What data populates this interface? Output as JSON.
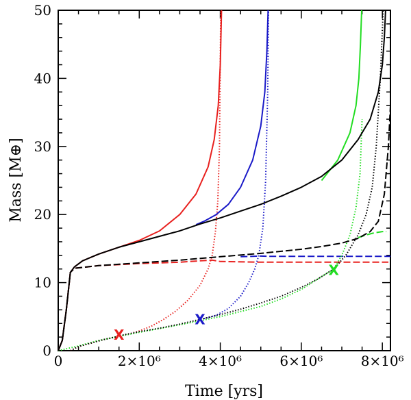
{
  "chart_data": {
    "type": "line",
    "title": "",
    "xlabel": "Time [yrs]",
    "ylabel": "Mass [M⊕]",
    "xlim": [
      0,
      8200000
    ],
    "ylim": [
      0,
      50
    ],
    "x_ticks": [
      {
        "value": 0,
        "label": "0"
      },
      {
        "value": 2000000,
        "label": "2×10⁶"
      },
      {
        "value": 4000000,
        "label": "4×10⁶"
      },
      {
        "value": 6000000,
        "label": "6×10⁶"
      },
      {
        "value": 8000000,
        "label": "8×10⁶"
      }
    ],
    "y_ticks": [
      {
        "value": 0,
        "label": "0"
      },
      {
        "value": 10,
        "label": "10"
      },
      {
        "value": 20,
        "label": "20"
      },
      {
        "value": 30,
        "label": "30"
      },
      {
        "value": 40,
        "label": "40"
      },
      {
        "value": 50,
        "label": "50"
      }
    ],
    "series": [
      {
        "name": "red-total",
        "color": "#e8201e",
        "dash": "solid",
        "x": [
          0,
          100000,
          200000,
          300000,
          400000,
          600000,
          1000000,
          1500000,
          2000000,
          2500000,
          3000000,
          3400000,
          3700000,
          3850000,
          3950000,
          4000000,
          4030000
        ],
        "y": [
          0,
          1.5,
          6,
          11.5,
          12.3,
          13.2,
          14.2,
          15.2,
          16.2,
          17.6,
          20.0,
          23.0,
          27.0,
          31.0,
          36.0,
          42.0,
          50.0
        ]
      },
      {
        "name": "red-core",
        "color": "#e8201e",
        "dash": "dotted",
        "x": [
          300000,
          500000,
          800000,
          1100000,
          1400000,
          1600000,
          1800000,
          2000000,
          2300000,
          2600000,
          2900000,
          3200000,
          3500000,
          3700000,
          3800000,
          3880000,
          3940000,
          3980000,
          4010000
        ],
        "y": [
          0,
          0.6,
          1.1,
          1.6,
          2.0,
          2.3,
          2.55,
          2.9,
          3.6,
          4.6,
          5.8,
          7.4,
          9.6,
          12.0,
          14.0,
          17.5,
          22.0,
          30.0,
          50.0
        ]
      },
      {
        "name": "red-envelope",
        "color": "#e8201e",
        "dash": "dashed",
        "x": [
          0,
          100000,
          200000,
          300000,
          400000,
          1000000,
          2000000,
          3000000,
          3500000,
          3800000,
          4000000,
          5000000,
          6000000,
          7000000,
          8000000,
          8150000
        ],
        "y": [
          0,
          1.5,
          6,
          11.5,
          12.1,
          12.5,
          12.8,
          13.0,
          13.2,
          13.3,
          13.1,
          13.0,
          13.0,
          13.0,
          13.0,
          13.0
        ]
      },
      {
        "name": "blue-total",
        "color": "#1a1ac8",
        "dash": "solid",
        "x": [
          3400000,
          3600000,
          3900000,
          4200000,
          4500000,
          4800000,
          5000000,
          5100000,
          5150000,
          5180000
        ],
        "y": [
          18.5,
          19.0,
          20.0,
          21.5,
          24.0,
          28.0,
          33.0,
          38.0,
          44.0,
          50.0
        ]
      },
      {
        "name": "blue-core",
        "color": "#1a1ac8",
        "dash": "dotted",
        "x": [
          3600000,
          3900000,
          4200000,
          4500000,
          4700000,
          4850000,
          4950000,
          5050000,
          5120000,
          5170000,
          5190000
        ],
        "y": [
          4.7,
          5.2,
          6.2,
          8.0,
          10.0,
          12.0,
          14.0,
          18.0,
          25.0,
          38.0,
          50.0
        ]
      },
      {
        "name": "blue-envelope",
        "color": "#1a1ac8",
        "dash": "dashed",
        "x": [
          4500000,
          5000000,
          5200000,
          6000000,
          7000000,
          8000000,
          8200000
        ],
        "y": [
          13.8,
          13.9,
          13.85,
          13.85,
          13.85,
          13.85,
          13.85
        ]
      },
      {
        "name": "green-total",
        "color": "#22dd22",
        "dash": "solid",
        "x": [
          6500000,
          6900000,
          7200000,
          7350000,
          7420000,
          7460000,
          7490000
        ],
        "y": [
          25.0,
          28.0,
          32.0,
          36.0,
          40.0,
          45.0,
          50.0
        ]
      },
      {
        "name": "green-core",
        "color": "#22dd22",
        "dash": "dotted",
        "x": [
          0,
          500000,
          1000000,
          1500000,
          2000000,
          3000000,
          4000000,
          5000000,
          5500000,
          6000000,
          6400000,
          6800000,
          7000000,
          7200000,
          7350000,
          7450000,
          7500000
        ],
        "y": [
          0,
          0.7,
          1.5,
          2.1,
          2.7,
          3.8,
          5.0,
          6.5,
          7.6,
          9.0,
          10.5,
          12.0,
          14.0,
          17.0,
          21.0,
          26.0,
          34.0
        ]
      },
      {
        "name": "green-envelope",
        "color": "#22dd22",
        "dash": "dashed",
        "x": [
          7400000,
          7600000,
          7800000,
          8000000,
          8100000
        ],
        "y": [
          16.6,
          17.0,
          17.3,
          17.5,
          17.5
        ]
      },
      {
        "name": "black-total",
        "color": "#000000",
        "dash": "solid",
        "x": [
          0,
          100000,
          200000,
          300000,
          400000,
          600000,
          1000000,
          1500000,
          2000000,
          2500000,
          3000000,
          3500000,
          4000000,
          4500000,
          5000000,
          5500000,
          6000000,
          6500000,
          7000000,
          7400000,
          7700000,
          7900000,
          8000000,
          8050000,
          8080000
        ],
        "y": [
          0,
          1.5,
          6,
          11.5,
          12.3,
          13.2,
          14.2,
          15.2,
          16.0,
          16.8,
          17.6,
          18.6,
          19.5,
          20.5,
          21.5,
          22.7,
          24.0,
          25.6,
          28.0,
          31.0,
          34.0,
          38.0,
          42.0,
          46.0,
          50.0
        ]
      },
      {
        "name": "black-envelope",
        "color": "#000000",
        "dash": "dashed",
        "x": [
          0,
          100000,
          200000,
          300000,
          400000,
          1000000,
          2000000,
          3000000,
          4000000,
          5000000,
          6000000,
          6500000,
          7000000,
          7400000,
          7700000,
          7900000,
          8050000,
          8150000,
          8200000
        ],
        "y": [
          0,
          1.5,
          6,
          11.5,
          12.1,
          12.5,
          12.9,
          13.3,
          13.8,
          14.3,
          14.9,
          15.3,
          15.8,
          16.5,
          17.5,
          19.0,
          23.0,
          30.0,
          36.0
        ]
      },
      {
        "name": "black-core",
        "color": "#000000",
        "dash": "dotted",
        "x": [
          300000,
          500000,
          800000,
          1100000,
          1400000,
          1600000,
          1800000,
          2000000,
          2500000,
          3000000,
          3500000,
          4000000,
          4500000,
          5000000,
          5500000,
          6000000,
          6400000,
          6800000,
          7100000,
          7400000,
          7600000,
          7750000,
          7850000,
          7950000,
          8020000
        ],
        "y": [
          0,
          0.6,
          1.1,
          1.6,
          2.0,
          2.3,
          2.55,
          2.8,
          3.3,
          3.9,
          4.6,
          5.3,
          6.1,
          7.0,
          8.0,
          9.3,
          10.5,
          12.0,
          14.0,
          17.0,
          20.0,
          24.0,
          30.0,
          40.0,
          50.0
        ]
      }
    ],
    "markers": [
      {
        "label": "X",
        "color": "#e8201e",
        "x": 1500000,
        "y": 2.3
      },
      {
        "label": "X",
        "color": "#1a1ac8",
        "x": 3500000,
        "y": 4.6
      },
      {
        "label": "X",
        "color": "#22dd22",
        "x": 6800000,
        "y": 11.8
      }
    ]
  }
}
